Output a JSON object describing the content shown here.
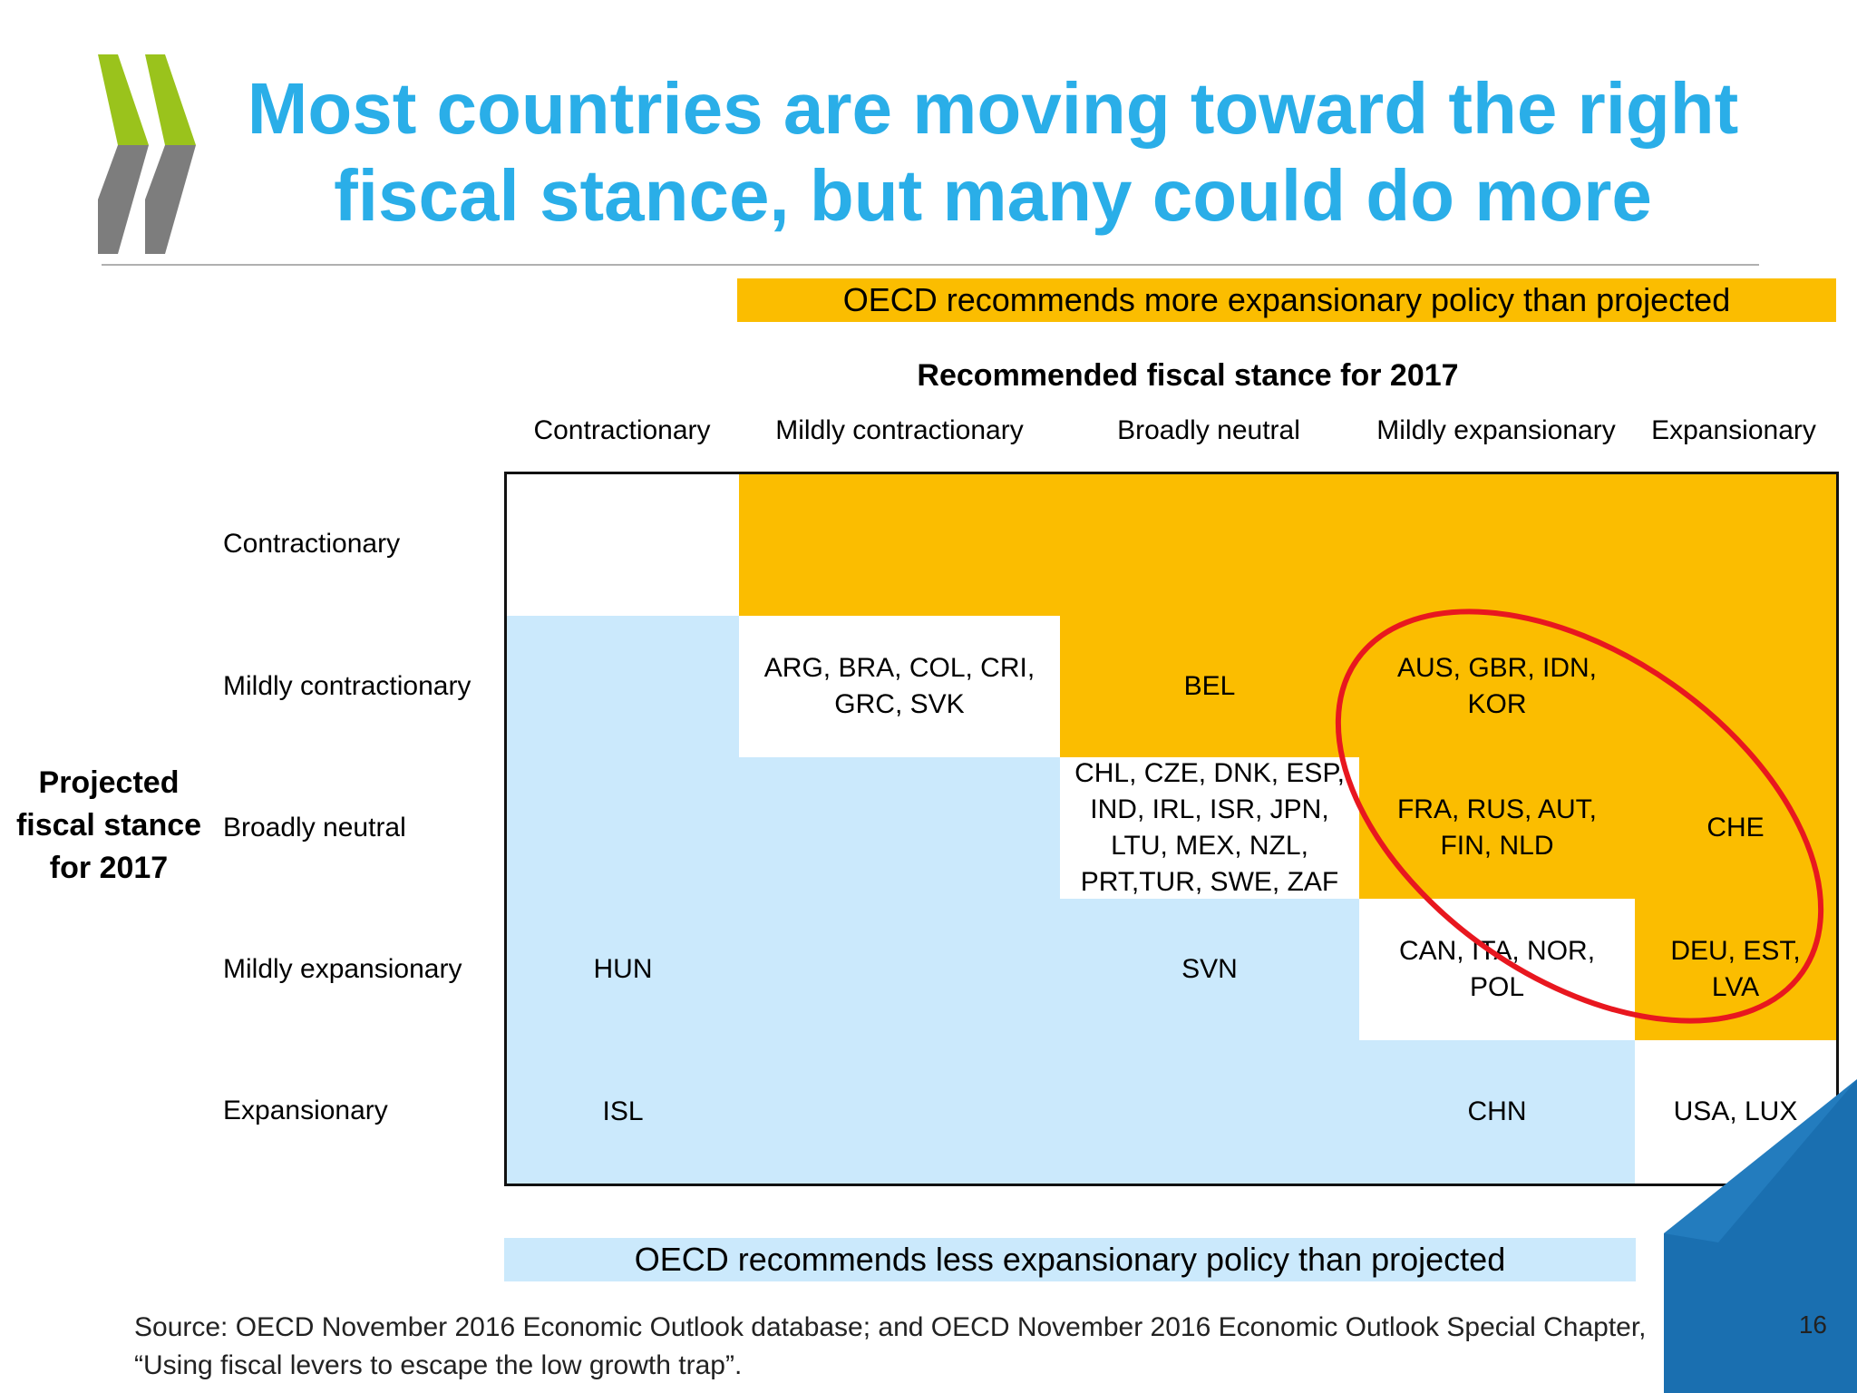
{
  "title": {
    "line1": "Most countries are moving toward the right",
    "line2": "fiscal stance, but many could do more"
  },
  "banners": {
    "top": "OECD recommends more expansionary policy than projected",
    "bottom": "OECD recommends less expansionary policy than projected"
  },
  "matrix": {
    "column_title": "Recommended fiscal stance for 2017",
    "row_title": [
      "Projected",
      "fiscal stance",
      "for 2017"
    ],
    "columns": [
      "Contractionary",
      "Mildly contractionary",
      "Broadly neutral",
      "Mildly expansionary",
      "Expansionary"
    ],
    "rows": [
      "Contractionary",
      "Mildly contractionary",
      "Broadly neutral",
      "Mildly expansionary",
      "Expansionary"
    ],
    "cells": {
      "r1c1": [
        "ARG, BRA, COL, CRI,",
        "GRC, SVK"
      ],
      "r1c2": [
        "BEL"
      ],
      "r1c3": [
        "AUS, GBR, IDN,",
        "KOR"
      ],
      "r2c2": [
        "CHL, CZE, DNK, ESP,",
        "IND, IRL, ISR, JPN,",
        "LTU, MEX, NZL,",
        "PRT,TUR, SWE, ZAF"
      ],
      "r2c3": [
        "FRA, RUS, AUT,",
        "FIN, NLD"
      ],
      "r2c4": [
        "CHE"
      ],
      "r3c0": [
        "HUN"
      ],
      "r3c2": [
        "SVN"
      ],
      "r3c3": [
        "CAN, ITA, NOR,",
        "POL"
      ],
      "r3c4": [
        "DEU, EST,",
        "LVA"
      ],
      "r4c0": [
        "ISL"
      ],
      "r4c3": [
        "CHN"
      ],
      "r4c4": [
        "USA, LUX"
      ]
    }
  },
  "source": {
    "line1": "Source: OECD November 2016 Economic Outlook database; and OECD November 2016 Economic Outlook Special Chapter,",
    "line2": "“Using fiscal levers to escape the low growth trap”."
  },
  "page_number": "16",
  "colors": {
    "title": "#2aaee8",
    "orange": "#fbbd00",
    "light_blue": "#cbe9fc",
    "highlight": "#e8171f",
    "corner_blue": "#1a6fb0"
  }
}
